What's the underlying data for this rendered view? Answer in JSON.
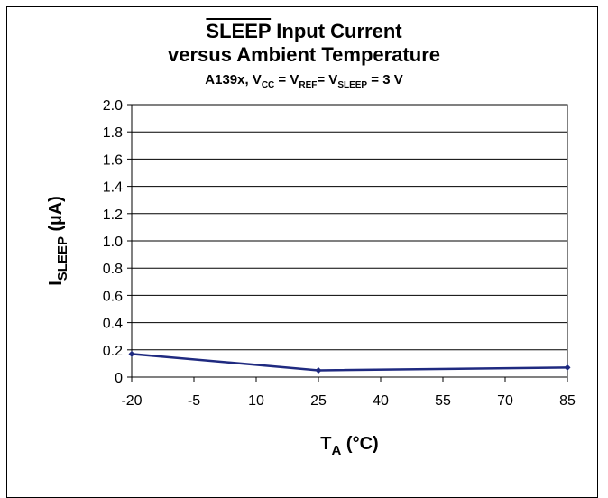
{
  "chart_data": {
    "type": "line",
    "title_line1_overlined": "SLEEP",
    "title_line1_rest": " Input Current",
    "title_line2": "versus Ambient Temperature",
    "subtitle": {
      "prefix": "A139x, V",
      "cc": "CC",
      "eq1": " = V",
      "ref": "REF",
      "eq2": "= V",
      "sleep": "SLEEP",
      "suffix": " = 3 V"
    },
    "ylabel": {
      "main": "I",
      "sub": "SLEEP",
      "unit": " (µA)"
    },
    "xlabel": {
      "main": "T",
      "sub": "A",
      "unit": " (°C)"
    },
    "xlim": [
      -20,
      85
    ],
    "ylim": [
      0,
      2.0
    ],
    "x_ticks": [
      -20,
      -5,
      10,
      25,
      40,
      55,
      70,
      85
    ],
    "y_ticks": [
      0,
      0.2,
      0.4,
      0.6,
      0.8,
      1.0,
      1.2,
      1.4,
      1.6,
      1.8,
      2.0
    ],
    "y_tick_labels": [
      "0",
      "0.2",
      "0.4",
      "0.6",
      "0.8",
      "1.0",
      "1.2",
      "1.4",
      "1.6",
      "1.8",
      "2.0"
    ],
    "grid": "horizontal",
    "series": [
      {
        "x": [
          -20,
          25,
          85
        ],
        "y": [
          0.17,
          0.05,
          0.07
        ],
        "color": "#1f2a80"
      }
    ]
  }
}
